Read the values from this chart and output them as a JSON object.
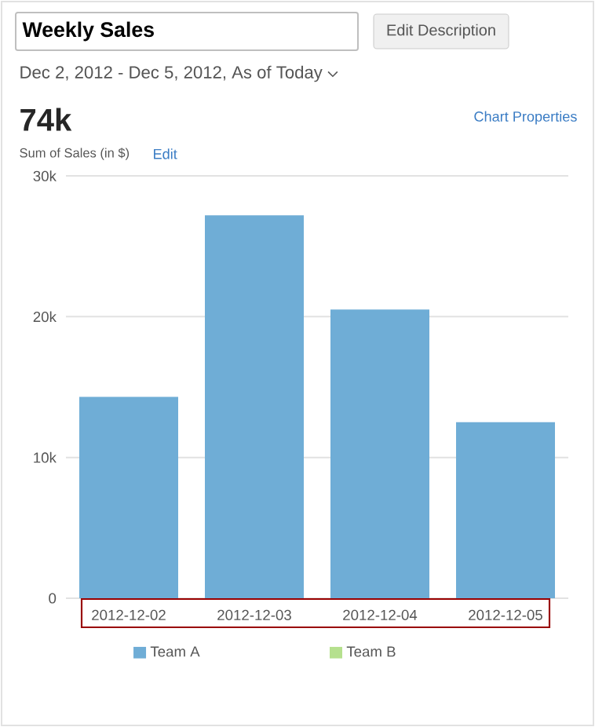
{
  "chart_data": {
    "type": "bar",
    "title": "Weekly Sales",
    "subtitle": "Dec 2, 2012 - Dec 5, 2012, As of Today",
    "ylabel": "Sum of Sales (in $)",
    "annotations": [
      "Edit Description",
      "74k",
      "Chart Properties",
      "Edit"
    ],
    "categories": [
      "2012-12-02",
      "2012-12-03",
      "2012-12-04",
      "2012-12-05"
    ],
    "series": [
      {
        "name": "Team A",
        "color": "#6fadd6",
        "values": [
          14300,
          27200,
          20500,
          12500
        ]
      },
      {
        "name": "Team B",
        "color": "#b5e08e",
        "values": [
          null,
          null,
          null,
          null
        ]
      }
    ],
    "ylim": [
      0,
      30000
    ],
    "yticks": [
      0,
      {
        "value": 10000,
        "label": "10k"
      },
      {
        "value": 20000,
        "label": "20k"
      },
      {
        "value": 30000,
        "label": "30k"
      }
    ],
    "grid": "y",
    "legend": "bottom"
  }
}
